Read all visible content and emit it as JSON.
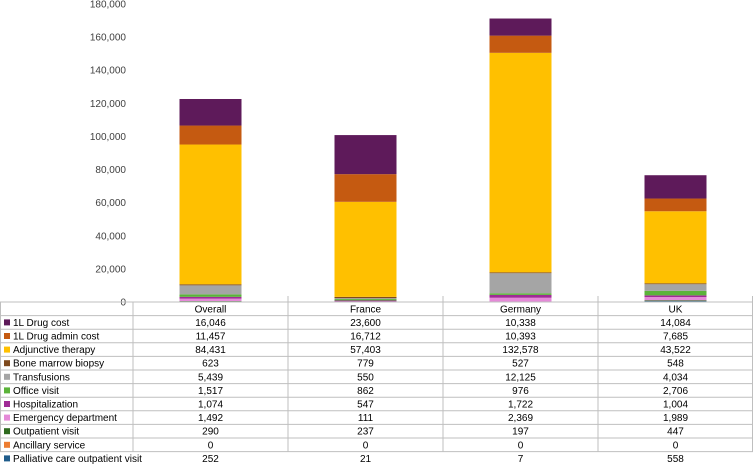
{
  "chart_data": {
    "type": "bar",
    "stacked": true,
    "categories": [
      "Overall",
      "France",
      "Germany",
      "UK"
    ],
    "ylim": [
      0,
      180000
    ],
    "yticks": [
      "0",
      "20,000",
      "40,000",
      "60,000",
      "80,000",
      "100,000",
      "120,000",
      "140,000",
      "160,000",
      "180,000"
    ],
    "legend_placement": "data-table",
    "series": [
      {
        "name": "Palliative care outpatient visit",
        "color": "#1F5C8B",
        "values": [
          252,
          21,
          7,
          558
        ],
        "labels": [
          "252",
          "21",
          "7",
          "558"
        ]
      },
      {
        "name": "Ancillary service",
        "color": "#ED7D31",
        "values": [
          0,
          0,
          0,
          0
        ],
        "labels": [
          "0",
          "0",
          "0",
          "0"
        ]
      },
      {
        "name": "Outpatient visit",
        "color": "#2E6B1F",
        "values": [
          290,
          237,
          197,
          447
        ],
        "labels": [
          "290",
          "237",
          "197",
          "447"
        ]
      },
      {
        "name": "Emergency department",
        "color": "#E58AD8",
        "values": [
          1492,
          111,
          2369,
          1989
        ],
        "labels": [
          "1,492",
          "111",
          "2,369",
          "1,989"
        ]
      },
      {
        "name": "Hospitalization",
        "color": "#A02C96",
        "values": [
          1074,
          547,
          1722,
          1004
        ],
        "labels": [
          "1,074",
          "547",
          "1,722",
          "1,004"
        ]
      },
      {
        "name": "Office visit",
        "color": "#5BB33A",
        "values": [
          1517,
          862,
          976,
          2706
        ],
        "labels": [
          "1,517",
          "862",
          "976",
          "2,706"
        ]
      },
      {
        "name": "Transfusions",
        "color": "#A5A5A5",
        "values": [
          5439,
          550,
          12125,
          4034
        ],
        "labels": [
          "5,439",
          "550",
          "12,125",
          "4,034"
        ]
      },
      {
        "name": "Bone marrow biopsy",
        "color": "#7F4A1E",
        "values": [
          623,
          779,
          527,
          548
        ],
        "labels": [
          "623",
          "779",
          "527",
          "548"
        ]
      },
      {
        "name": "Adjunctive therapy",
        "color": "#FFC000",
        "values": [
          84431,
          57403,
          132578,
          43522
        ],
        "labels": [
          "84,431",
          "57,403",
          "132,578",
          "43,522"
        ]
      },
      {
        "name": "1L Drug admin cost",
        "color": "#C55A11",
        "values": [
          11457,
          16712,
          10393,
          7685
        ],
        "labels": [
          "11,457",
          "16,712",
          "10,393",
          "7,685"
        ]
      },
      {
        "name": "1L Drug cost",
        "color": "#5E1A5A",
        "values": [
          16046,
          23600,
          10338,
          14084
        ],
        "labels": [
          "16,046",
          "23,600",
          "10,338",
          "14,084"
        ]
      }
    ],
    "table_row_order": [
      "1L Drug cost",
      "1L Drug admin cost",
      "Adjunctive therapy",
      "Bone marrow biopsy",
      "Transfusions",
      "Office visit",
      "Hospitalization",
      "Emergency department",
      "Outpatient visit",
      "Ancillary service",
      "Palliative care outpatient visit"
    ]
  }
}
